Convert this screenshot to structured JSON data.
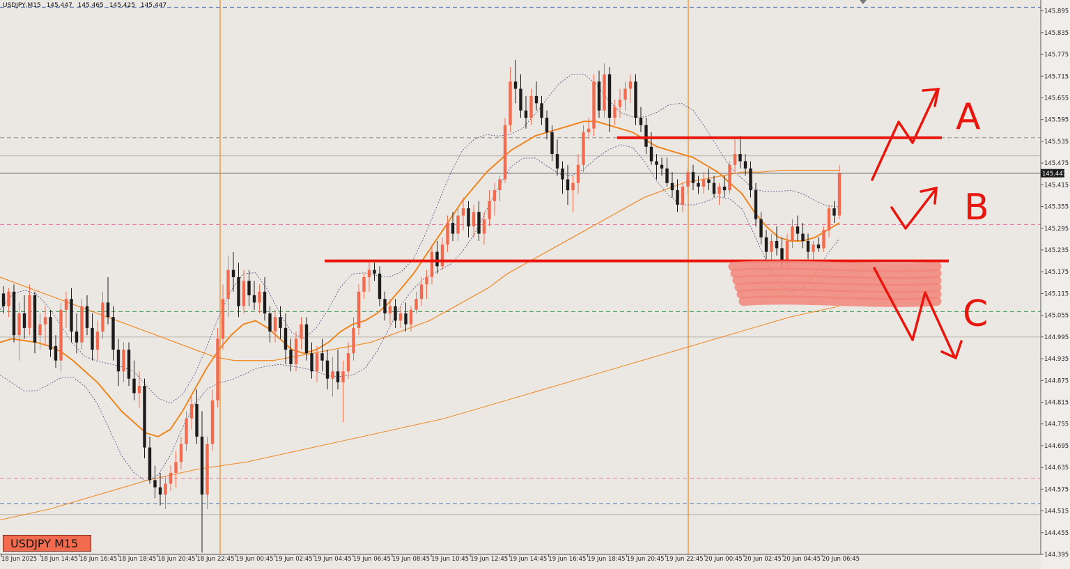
{
  "header": {
    "symbol_timeframe": "USDJPY,M15",
    "open": "145.447",
    "high": "145.465",
    "low": "145.425",
    "close": "145.447"
  },
  "badge": {
    "label": "USDJPY M15"
  },
  "price_scale": {
    "ticks": [
      "145.895",
      "145.835",
      "145.775",
      "145.715",
      "145.655",
      "145.595",
      "145.535",
      "145.475",
      "145.415",
      "145.355",
      "145.295",
      "145.235",
      "145.175",
      "145.115",
      "145.055",
      "144.995",
      "144.935",
      "144.875",
      "144.815",
      "144.755",
      "144.695",
      "144.635",
      "144.575",
      "144.515",
      "144.455",
      "144.395"
    ],
    "current_price": "145.447"
  },
  "time_scale": {
    "labels": [
      "18 Jun 2025",
      "18 Jun 14:45",
      "18 Jun 16:45",
      "18 Jun 18:45",
      "18 Jun 20:45",
      "18 Jun 22:45",
      "19 Jun 00:45",
      "19 Jun 02:45",
      "19 Jun 04:45",
      "19 Jun 06:45",
      "19 Jun 08:45",
      "19 Jun 10:45",
      "19 Jun 12:45",
      "19 Jun 14:45",
      "19 Jun 16:45",
      "19 Jun 18:45",
      "19 Jun 20:45",
      "19 Jun 22:45",
      "20 Jun 00:45",
      "20 Jun 02:45",
      "20 Jun 04:45",
      "20 Jun 06:45"
    ]
  },
  "annotations": {
    "label_a": "A",
    "label_b": "B",
    "label_c": "C"
  },
  "colors": {
    "bull": "#f26b4f",
    "bear": "#1c1c1c",
    "ma": "#f0851e",
    "annotation": "#e8160c",
    "zone": "#f2857a",
    "blue_dash": "#4a6fb0",
    "pink_dash": "#e87aa8",
    "green_dash": "#3f9a58",
    "background": "#ebe8e4"
  },
  "chart_data": {
    "type": "candlestick",
    "symbol": "USDJPY",
    "timeframe": "M15",
    "ylim": [
      144.395,
      145.925
    ],
    "candles": [
      [
        145.115,
        145.135,
        145.06,
        145.08
      ],
      [
        145.08,
        145.13,
        145.05,
        145.12
      ],
      [
        145.12,
        145.14,
        144.98,
        145.0
      ],
      [
        145.0,
        145.09,
        144.93,
        145.06
      ],
      [
        145.06,
        145.11,
        144.99,
        145.02
      ],
      [
        145.02,
        145.14,
        145.0,
        145.11
      ],
      [
        145.11,
        145.12,
        144.95,
        144.98
      ],
      [
        145.0,
        145.06,
        144.96,
        145.03
      ],
      [
        145.03,
        145.08,
        144.97,
        145.05
      ],
      [
        145.05,
        145.07,
        144.94,
        144.96
      ],
      [
        144.97,
        145.0,
        144.91,
        144.93
      ],
      [
        144.93,
        145.09,
        144.9,
        145.07
      ],
      [
        145.07,
        145.12,
        145.02,
        145.1
      ],
      [
        145.1,
        145.13,
        144.98,
        145.01
      ],
      [
        145.01,
        145.06,
        144.95,
        144.98
      ],
      [
        144.98,
        145.1,
        144.96,
        145.08
      ],
      [
        145.08,
        145.11,
        145.0,
        145.02
      ],
      [
        145.02,
        145.06,
        144.93,
        144.96
      ],
      [
        144.96,
        145.04,
        144.93,
        145.01
      ],
      [
        145.01,
        145.12,
        144.99,
        145.09
      ],
      [
        145.09,
        145.16,
        145.03,
        145.05
      ],
      [
        145.05,
        145.08,
        144.93,
        144.96
      ],
      [
        144.96,
        144.99,
        144.86,
        144.9
      ],
      [
        144.9,
        144.98,
        144.87,
        144.96
      ],
      [
        144.96,
        144.98,
        144.86,
        144.88
      ],
      [
        144.88,
        144.93,
        144.82,
        144.84
      ],
      [
        144.84,
        144.9,
        144.8,
        144.86
      ],
      [
        144.86,
        144.88,
        144.66,
        144.69
      ],
      [
        144.69,
        144.72,
        144.59,
        144.6
      ],
      [
        144.6,
        144.64,
        144.55,
        144.58
      ],
      [
        144.58,
        144.62,
        144.53,
        144.56
      ],
      [
        144.56,
        144.61,
        144.52,
        144.59
      ],
      [
        144.59,
        144.64,
        144.57,
        144.62
      ],
      [
        144.62,
        144.68,
        144.58,
        144.65
      ],
      [
        144.65,
        144.72,
        144.63,
        144.7
      ],
      [
        144.7,
        144.79,
        144.68,
        144.77
      ],
      [
        144.77,
        144.83,
        144.74,
        144.81
      ],
      [
        144.81,
        144.85,
        144.7,
        144.72
      ],
      [
        144.72,
        144.79,
        144.4,
        144.56
      ],
      [
        144.56,
        144.72,
        144.52,
        144.7
      ],
      [
        144.7,
        144.85,
        144.68,
        144.82
      ],
      [
        144.82,
        145.02,
        144.8,
        144.99
      ],
      [
        144.99,
        145.14,
        144.96,
        145.1
      ],
      [
        145.1,
        145.22,
        145.05,
        145.18
      ],
      [
        145.18,
        145.23,
        145.12,
        145.16
      ],
      [
        145.16,
        145.2,
        145.05,
        145.08
      ],
      [
        145.08,
        145.18,
        145.06,
        145.15
      ],
      [
        145.15,
        145.18,
        145.08,
        145.11
      ],
      [
        145.11,
        145.15,
        145.07,
        145.09
      ],
      [
        145.09,
        145.14,
        145.06,
        145.12
      ],
      [
        145.12,
        145.16,
        145.04,
        145.06
      ],
      [
        145.06,
        145.08,
        144.98,
        145.01
      ],
      [
        145.01,
        145.07,
        144.98,
        145.05
      ],
      [
        145.05,
        145.08,
        144.99,
        145.02
      ],
      [
        145.02,
        145.06,
        144.92,
        144.96
      ],
      [
        144.96,
        144.99,
        144.9,
        144.92
      ],
      [
        144.92,
        145.01,
        144.9,
        144.99
      ],
      [
        144.99,
        145.05,
        144.96,
        145.03
      ],
      [
        145.03,
        145.05,
        144.93,
        144.95
      ],
      [
        144.95,
        144.98,
        144.88,
        144.9
      ],
      [
        144.9,
        144.97,
        144.87,
        144.95
      ],
      [
        144.95,
        144.99,
        144.9,
        144.93
      ],
      [
        144.93,
        144.96,
        144.85,
        144.88
      ],
      [
        144.88,
        144.94,
        144.83,
        144.9
      ],
      [
        144.9,
        144.96,
        144.85,
        144.87
      ],
      [
        144.87,
        144.93,
        144.76,
        144.9
      ],
      [
        144.9,
        144.98,
        144.88,
        144.95
      ],
      [
        144.95,
        145.05,
        144.93,
        145.02
      ],
      [
        145.02,
        145.14,
        145.0,
        145.12
      ],
      [
        145.12,
        145.17,
        145.1,
        145.16
      ],
      [
        145.16,
        145.2,
        145.12,
        145.18
      ],
      [
        145.18,
        145.2,
        145.15,
        145.17
      ],
      [
        145.17,
        145.19,
        145.08,
        145.1
      ],
      [
        145.1,
        145.12,
        145.04,
        145.06
      ],
      [
        145.06,
        145.1,
        145.03,
        145.08
      ],
      [
        145.08,
        145.1,
        145.02,
        145.04
      ],
      [
        145.04,
        145.08,
        145.02,
        145.06
      ],
      [
        145.06,
        145.09,
        145.01,
        145.03
      ],
      [
        145.03,
        145.08,
        145.01,
        145.07
      ],
      [
        145.07,
        145.12,
        145.06,
        145.1
      ],
      [
        145.1,
        145.16,
        145.08,
        145.14
      ],
      [
        145.14,
        145.18,
        145.1,
        145.16
      ],
      [
        145.16,
        145.25,
        145.14,
        145.23
      ],
      [
        145.23,
        145.26,
        145.17,
        145.19
      ],
      [
        145.19,
        145.27,
        145.18,
        145.25
      ],
      [
        145.25,
        145.33,
        145.23,
        145.31
      ],
      [
        145.31,
        145.34,
        145.26,
        145.28
      ],
      [
        145.28,
        145.35,
        145.26,
        145.33
      ],
      [
        145.33,
        145.38,
        145.29,
        145.35
      ],
      [
        145.35,
        145.37,
        145.27,
        145.3
      ],
      [
        145.3,
        145.36,
        145.27,
        145.34
      ],
      [
        145.34,
        145.37,
        145.26,
        145.28
      ],
      [
        145.28,
        145.34,
        145.25,
        145.32
      ],
      [
        145.32,
        145.4,
        145.3,
        145.37
      ],
      [
        145.37,
        145.42,
        145.33,
        145.4
      ],
      [
        145.4,
        145.44,
        145.37,
        145.43
      ],
      [
        145.43,
        145.6,
        145.42,
        145.58
      ],
      [
        145.58,
        145.74,
        145.56,
        145.7
      ],
      [
        145.7,
        145.76,
        145.64,
        145.68
      ],
      [
        145.68,
        145.72,
        145.6,
        145.62
      ],
      [
        145.62,
        145.66,
        145.57,
        145.6
      ],
      [
        145.6,
        145.68,
        145.58,
        145.66
      ],
      [
        145.66,
        145.7,
        145.62,
        145.64
      ],
      [
        145.64,
        145.66,
        145.58,
        145.6
      ],
      [
        145.6,
        145.62,
        145.54,
        145.56
      ],
      [
        145.56,
        145.58,
        145.48,
        145.5
      ],
      [
        145.5,
        145.54,
        145.44,
        145.46
      ],
      [
        145.46,
        145.48,
        145.39,
        145.43
      ],
      [
        145.43,
        145.47,
        145.36,
        145.4
      ],
      [
        145.4,
        145.44,
        145.34,
        145.42
      ],
      [
        145.42,
        145.5,
        145.39,
        145.47
      ],
      [
        145.47,
        145.58,
        145.45,
        145.56
      ],
      [
        145.56,
        145.6,
        145.54,
        145.57
      ],
      [
        145.57,
        145.72,
        145.55,
        145.7
      ],
      [
        145.7,
        145.73,
        145.6,
        145.62
      ],
      [
        145.62,
        145.75,
        145.6,
        145.72
      ],
      [
        145.72,
        145.74,
        145.56,
        145.6
      ],
      [
        145.6,
        145.65,
        145.58,
        145.63
      ],
      [
        145.63,
        145.68,
        145.6,
        145.65
      ],
      [
        145.65,
        145.7,
        145.62,
        145.68
      ],
      [
        145.68,
        145.72,
        145.64,
        145.7
      ],
      [
        145.7,
        145.72,
        145.58,
        145.6
      ],
      [
        145.6,
        145.63,
        145.56,
        145.58
      ],
      [
        145.58,
        145.6,
        145.5,
        145.52
      ],
      [
        145.52,
        145.56,
        145.47,
        145.48
      ],
      [
        145.48,
        145.5,
        145.43,
        145.47
      ],
      [
        145.47,
        145.49,
        145.44,
        145.46
      ],
      [
        145.46,
        145.49,
        145.41,
        145.42
      ],
      [
        145.42,
        145.45,
        145.38,
        145.4
      ],
      [
        145.4,
        145.43,
        145.34,
        145.36
      ],
      [
        145.36,
        145.42,
        145.34,
        145.41
      ],
      [
        145.41,
        145.46,
        145.39,
        145.45
      ],
      [
        145.45,
        145.47,
        145.4,
        145.42
      ],
      [
        145.42,
        145.44,
        145.39,
        145.41
      ],
      [
        145.41,
        145.45,
        145.39,
        145.43
      ],
      [
        145.43,
        145.46,
        145.4,
        145.42
      ],
      [
        145.42,
        145.44,
        145.38,
        145.39
      ],
      [
        145.39,
        145.42,
        145.36,
        145.41
      ],
      [
        145.41,
        145.44,
        145.38,
        145.4
      ],
      [
        145.4,
        145.48,
        145.39,
        145.47
      ],
      [
        145.47,
        145.54,
        145.45,
        145.5
      ],
      [
        145.5,
        145.55,
        145.46,
        145.48
      ],
      [
        145.48,
        145.5,
        145.44,
        145.46
      ],
      [
        145.46,
        145.48,
        145.38,
        145.4
      ],
      [
        145.4,
        145.42,
        145.3,
        145.32
      ],
      [
        145.32,
        145.34,
        145.25,
        145.27
      ],
      [
        145.27,
        145.29,
        145.21,
        145.23
      ],
      [
        145.23,
        145.28,
        145.2,
        145.26
      ],
      [
        145.26,
        145.3,
        145.22,
        145.24
      ],
      [
        145.24,
        145.27,
        145.18,
        145.2
      ],
      [
        145.2,
        145.28,
        145.18,
        145.26
      ],
      [
        145.26,
        145.32,
        145.24,
        145.3
      ],
      [
        145.3,
        145.33,
        145.26,
        145.28
      ],
      [
        145.28,
        145.31,
        145.24,
        145.26
      ],
      [
        145.26,
        145.28,
        145.21,
        145.23
      ],
      [
        145.23,
        145.26,
        145.2,
        145.25
      ],
      [
        145.25,
        145.27,
        145.23,
        145.24
      ],
      [
        145.24,
        145.3,
        145.23,
        145.29
      ],
      [
        145.29,
        145.36,
        145.27,
        145.35
      ],
      [
        145.35,
        145.37,
        145.31,
        145.33
      ],
      [
        145.33,
        145.47,
        145.32,
        145.447
      ]
    ],
    "moving_averages": [
      {
        "label": "fast MA",
        "values": [
          144.98,
          144.99,
          144.985,
          144.98,
          144.97,
          144.955,
          144.93,
          144.9,
          144.87,
          144.83,
          144.79,
          144.76,
          144.73,
          144.72,
          144.74,
          144.79,
          144.85,
          144.91,
          144.96,
          145.0,
          145.03,
          145.04,
          145.02,
          144.99,
          144.96,
          144.95,
          144.96,
          144.98,
          145.01,
          145.03,
          145.04,
          145.06,
          145.09,
          145.13,
          145.17,
          145.22,
          145.27,
          145.32,
          145.37,
          145.41,
          145.45,
          145.48,
          145.51,
          145.53,
          145.55,
          145.56,
          145.57,
          145.58,
          145.59,
          145.59,
          145.58,
          145.57,
          145.56,
          145.54,
          145.52,
          145.51,
          145.5,
          145.49,
          145.47,
          145.45,
          145.42,
          145.39,
          145.34,
          145.3,
          145.27,
          145.26,
          145.26,
          145.27,
          145.29,
          145.31
        ]
      },
      {
        "label": "mid MA",
        "values": [
          145.16,
          145.14,
          145.12,
          145.1,
          145.08,
          145.06,
          145.04,
          145.02,
          145.0,
          144.98,
          144.96,
          144.94,
          144.93,
          144.93,
          144.93,
          144.94,
          144.95,
          144.96,
          144.97,
          144.98,
          145.0,
          145.02,
          145.04,
          145.07,
          145.1,
          145.13,
          145.17,
          145.2,
          145.23,
          145.26,
          145.29,
          145.32,
          145.35,
          145.38,
          145.4,
          145.42,
          145.43,
          145.44,
          145.45,
          145.45,
          145.455,
          145.455,
          145.455,
          145.455
        ]
      },
      {
        "label": "slow MA",
        "values": [
          144.49,
          144.52,
          144.56,
          144.6,
          144.63,
          144.65,
          144.68,
          144.71,
          144.74,
          144.77,
          144.81,
          144.85,
          144.89,
          144.93,
          144.97,
          145.01,
          145.05,
          145.08
        ]
      }
    ],
    "horizontal_levels": [
      {
        "price": 145.905,
        "style": "blue dashed"
      },
      {
        "price": 145.545,
        "style": "gray dashed"
      },
      {
        "price": 145.495,
        "style": "gray solid"
      },
      {
        "price": 145.447,
        "style": "dark solid (current price)"
      },
      {
        "price": 145.305,
        "style": "pink dashed"
      },
      {
        "price": 145.065,
        "style": "green dashed"
      },
      {
        "price": 144.995,
        "style": "gray solid"
      },
      {
        "price": 144.605,
        "style": "pink dashed"
      },
      {
        "price": 144.535,
        "style": "blue dashed"
      },
      {
        "price": 144.505,
        "style": "gray solid"
      }
    ],
    "drawn_lines": [
      {
        "name": "resistance",
        "price": 145.545
      },
      {
        "name": "support",
        "price": 145.205
      }
    ],
    "scenarios": [
      {
        "label": "A",
        "direction": "up"
      },
      {
        "label": "B",
        "direction": "up"
      },
      {
        "label": "C",
        "direction": "down"
      }
    ]
  }
}
